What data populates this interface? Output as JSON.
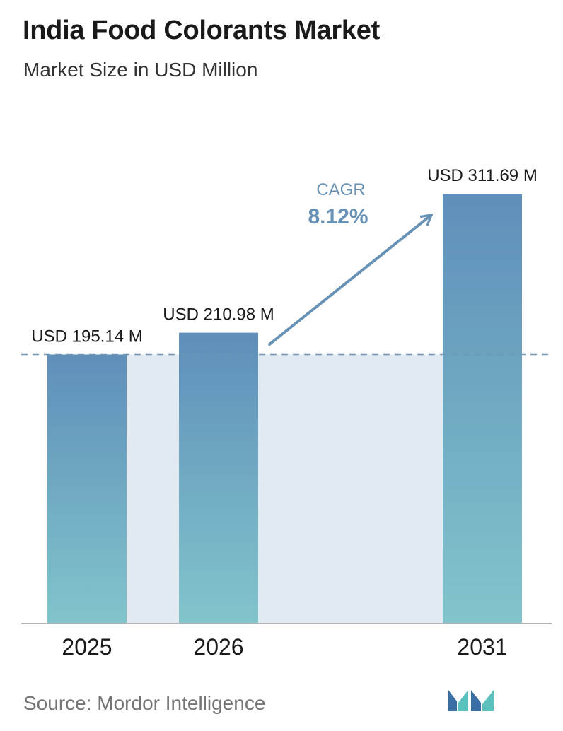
{
  "chart_data": {
    "type": "bar",
    "title": "India Food Colorants Market",
    "subtitle": "Market Size in USD Million",
    "categories": [
      "2025",
      "2026",
      "2031"
    ],
    "values": [
      195.14,
      210.98,
      311.69
    ],
    "value_labels": [
      "USD 195.14 M",
      "USD 210.98 M",
      "USD 311.69 M"
    ],
    "ylim": [
      0,
      340
    ],
    "grid": false,
    "annotation": {
      "label": "CAGR",
      "value": "8.12%"
    },
    "colors": {
      "bar_top": "#5f8fba",
      "bar_bottom": "#82c4cb",
      "band": "#e1e9f1",
      "arrow": "#6891b6",
      "dashed_line": "#6f95b8",
      "baseline": "#b3b3b3"
    }
  },
  "footer": {
    "source": "Source:  Mordor Intelligence"
  },
  "logo": {
    "icon": "mordor-intelligence-logo-icon",
    "colors": [
      "#3a6fa5",
      "#5cc1bd"
    ]
  }
}
